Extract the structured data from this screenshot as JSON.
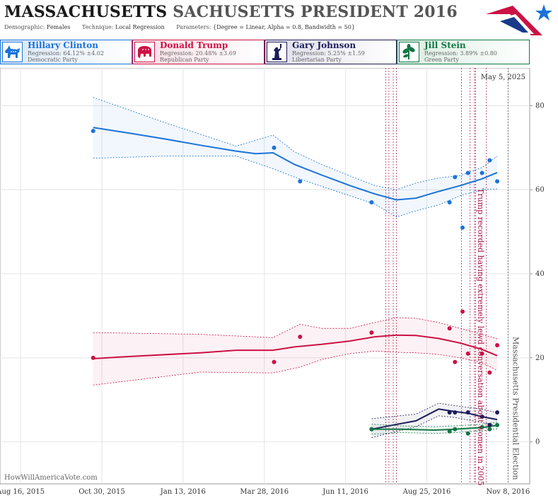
{
  "title_bold": "MASSACHUSETTS",
  "title_rest": "SACHUSETTS PRESIDENT 2016",
  "params": {
    "demographic_key": "Demographic:",
    "demographic": "Females",
    "technique_key": "Technique:",
    "technique": "Local Regression",
    "parameters_key": "Parameters:",
    "parameters": "{Degree = Linear, Alpha = 0.8, Bandwidth = 50}"
  },
  "candidates": [
    {
      "name": "Hillary Clinton",
      "regression": "Regression: 64.12% ±4.02",
      "party": "Democratic Party",
      "color": "#1a73d8",
      "icon": "donkey-icon"
    },
    {
      "name": "Donald Trump",
      "regression": "Regression: 20.48% ±3.69",
      "party": "Republican Party",
      "color": "#cc1144",
      "icon": "elephant-icon"
    },
    {
      "name": "Gary Johnson",
      "regression": "Regression: 5.25% ±1.59",
      "party": "Libertarian Party",
      "color": "#1c1c5a",
      "icon": "liberty-statue-icon"
    },
    {
      "name": "Jill Stein",
      "regression": "Regression: 3.89% ±0.80",
      "party": "Green Party",
      "color": "#117744",
      "icon": "plant-icon"
    }
  ],
  "watermark": "HowWillAmericaVote.com",
  "chart_data": {
    "type": "scatter",
    "date_label": "May 5, 2025",
    "x_ticks": [
      "2015-08-16",
      "2015-10-30",
      "2016-01-13",
      "2016-03-28",
      "2016-06-11",
      "2016-08-25",
      "2016-11-08"
    ],
    "x_tick_labels": [
      "Aug 16, 2015",
      "Oct 30, 2015",
      "Jan 13, 2016",
      "Mar 28, 2016",
      "Jun 11, 2016",
      "Aug 25, 2016",
      "Nov 8, 2016"
    ],
    "x_range": [
      "2015-07-28",
      "2016-11-28"
    ],
    "y_ticks": [
      0,
      20,
      40,
      60,
      80
    ],
    "y_range": [
      -10,
      89
    ],
    "grid": true,
    "events": [
      {
        "label": "Trump recorded having extremely lewd conversation about women in 2005",
        "date": "2016-10-08",
        "color": "#aa1144"
      },
      {
        "label": "Massachusetts Presidential Election",
        "date": "2016-11-08",
        "color": "#555555"
      }
    ],
    "extra_event_dates": [
      "2016-07-18",
      "2016-07-21",
      "2016-07-25",
      "2016-07-28",
      "2016-09-26",
      "2016-10-04",
      "2016-10-09",
      "2016-10-19"
    ],
    "series": [
      {
        "name": "Hillary Clinton",
        "color": "#1a73d8",
        "points": [
          [
            "2015-10-22",
            74
          ],
          [
            "2016-04-06",
            70
          ],
          [
            "2016-04-30",
            62
          ],
          [
            "2016-07-05",
            57
          ],
          [
            "2016-09-15",
            57
          ],
          [
            "2016-09-20",
            63
          ],
          [
            "2016-09-27",
            51
          ],
          [
            "2016-10-02",
            64
          ],
          [
            "2016-10-15",
            64
          ],
          [
            "2016-10-22",
            67
          ],
          [
            "2016-10-29",
            62
          ]
        ],
        "trend": [
          [
            "2015-10-22",
            74.8
          ],
          [
            "2015-11-24",
            73.5
          ],
          [
            "2015-12-27",
            72.1
          ],
          [
            "2016-01-29",
            70.6
          ],
          [
            "2016-03-02",
            69.2
          ],
          [
            "2016-03-20",
            68.6
          ],
          [
            "2016-04-05",
            68.8
          ],
          [
            "2016-04-25",
            66.0
          ],
          [
            "2016-05-20",
            63.5
          ],
          [
            "2016-06-15",
            61.0
          ],
          [
            "2016-07-08",
            59.0
          ],
          [
            "2016-07-28",
            57.6
          ],
          [
            "2016-08-15",
            58.0
          ],
          [
            "2016-09-05",
            59.6
          ],
          [
            "2016-09-25",
            61.0
          ],
          [
            "2016-10-15",
            62.6
          ],
          [
            "2016-10-29",
            64.1
          ]
        ],
        "upper": [
          [
            "2015-10-22",
            82.0
          ],
          [
            "2015-12-27",
            76.0
          ],
          [
            "2016-03-02",
            70.4
          ],
          [
            "2016-04-05",
            73.0
          ],
          [
            "2016-04-25",
            69.0
          ],
          [
            "2016-05-20",
            66.0
          ],
          [
            "2016-06-15",
            63.3
          ],
          [
            "2016-07-08",
            61.0
          ],
          [
            "2016-07-28",
            60.0
          ],
          [
            "2016-08-15",
            61.6
          ],
          [
            "2016-09-05",
            62.8
          ],
          [
            "2016-09-25",
            63.4
          ],
          [
            "2016-10-15",
            65.3
          ],
          [
            "2016-10-29",
            68.0
          ]
        ],
        "lower": [
          [
            "2015-10-22",
            67.5
          ],
          [
            "2015-12-27",
            68.0
          ],
          [
            "2016-03-02",
            68.0
          ],
          [
            "2016-04-05",
            65.0
          ],
          [
            "2016-04-25",
            63.0
          ],
          [
            "2016-05-20",
            60.8
          ],
          [
            "2016-06-15",
            58.6
          ],
          [
            "2016-07-08",
            56.6
          ],
          [
            "2016-07-28",
            53.5
          ],
          [
            "2016-08-15",
            55.0
          ],
          [
            "2016-09-05",
            56.4
          ],
          [
            "2016-09-25",
            58.6
          ],
          [
            "2016-10-15",
            60.0
          ],
          [
            "2016-10-29",
            60.2
          ]
        ]
      },
      {
        "name": "Donald Trump",
        "color": "#cc1144",
        "points": [
          [
            "2015-10-22",
            20
          ],
          [
            "2016-04-06",
            19
          ],
          [
            "2016-04-30",
            25
          ],
          [
            "2016-07-05",
            26
          ],
          [
            "2016-09-15",
            27
          ],
          [
            "2016-09-20",
            19
          ],
          [
            "2016-09-27",
            31
          ],
          [
            "2016-10-02",
            21
          ],
          [
            "2016-10-15",
            21
          ],
          [
            "2016-10-22",
            16.5
          ],
          [
            "2016-10-29",
            23
          ]
        ],
        "trend": [
          [
            "2015-10-22",
            19.8
          ],
          [
            "2015-11-24",
            20.3
          ],
          [
            "2016-01-29",
            21.2
          ],
          [
            "2016-03-02",
            21.8
          ],
          [
            "2016-04-05",
            21.8
          ],
          [
            "2016-04-25",
            22.6
          ],
          [
            "2016-05-20",
            23.2
          ],
          [
            "2016-06-15",
            24.0
          ],
          [
            "2016-07-08",
            25.0
          ],
          [
            "2016-07-28",
            25.4
          ],
          [
            "2016-08-15",
            25.3
          ],
          [
            "2016-09-05",
            24.6
          ],
          [
            "2016-09-25",
            23.5
          ],
          [
            "2016-10-15",
            22.0
          ],
          [
            "2016-10-29",
            20.5
          ]
        ],
        "upper": [
          [
            "2015-10-22",
            26.0
          ],
          [
            "2016-01-29",
            25.6
          ],
          [
            "2016-04-05",
            24.8
          ],
          [
            "2016-04-30",
            28.0
          ],
          [
            "2016-05-20",
            27.0
          ],
          [
            "2016-06-15",
            27.0
          ],
          [
            "2016-07-08",
            28.4
          ],
          [
            "2016-07-28",
            29.6
          ],
          [
            "2016-08-15",
            29.4
          ],
          [
            "2016-09-05",
            28.4
          ],
          [
            "2016-09-25",
            27.0
          ],
          [
            "2016-10-15",
            25.6
          ],
          [
            "2016-10-29",
            24.5
          ]
        ],
        "lower": [
          [
            "2015-10-22",
            13.5
          ],
          [
            "2016-01-29",
            16.6
          ],
          [
            "2016-04-05",
            16.4
          ],
          [
            "2016-04-30",
            17.8
          ],
          [
            "2016-05-20",
            19.6
          ],
          [
            "2016-06-15",
            21.0
          ],
          [
            "2016-07-08",
            21.6
          ],
          [
            "2016-07-28",
            21.3
          ],
          [
            "2016-08-15",
            21.2
          ],
          [
            "2016-09-05",
            20.8
          ],
          [
            "2016-09-25",
            20.0
          ],
          [
            "2016-10-15",
            18.8
          ],
          [
            "2016-10-29",
            17.0
          ]
        ]
      },
      {
        "name": "Gary Johnson",
        "color": "#1c1c5a",
        "points": [
          [
            "2016-07-05",
            3
          ],
          [
            "2016-09-15",
            7
          ],
          [
            "2016-09-20",
            7
          ],
          [
            "2016-10-02",
            7
          ],
          [
            "2016-10-15",
            6
          ],
          [
            "2016-10-22",
            4
          ],
          [
            "2016-10-29",
            7
          ]
        ],
        "trend": [
          [
            "2016-07-05",
            3.0
          ],
          [
            "2016-07-25",
            4.0
          ],
          [
            "2016-08-15",
            5.0
          ],
          [
            "2016-09-05",
            7.8
          ],
          [
            "2016-09-20",
            7.2
          ],
          [
            "2016-10-02",
            6.8
          ],
          [
            "2016-10-15",
            6.0
          ],
          [
            "2016-10-29",
            5.3
          ]
        ],
        "upper": [
          [
            "2016-07-05",
            5.5
          ],
          [
            "2016-08-15",
            6.6
          ],
          [
            "2016-09-05",
            9.2
          ],
          [
            "2016-09-20",
            8.6
          ],
          [
            "2016-10-15",
            7.8
          ],
          [
            "2016-10-29",
            6.9
          ]
        ],
        "lower": [
          [
            "2016-07-05",
            1.0
          ],
          [
            "2016-08-15",
            3.6
          ],
          [
            "2016-09-05",
            6.2
          ],
          [
            "2016-09-20",
            5.8
          ],
          [
            "2016-10-15",
            4.6
          ],
          [
            "2016-10-29",
            3.8
          ]
        ]
      },
      {
        "name": "Jill Stein",
        "color": "#117744",
        "points": [
          [
            "2016-07-05",
            3
          ],
          [
            "2016-09-15",
            2.5
          ],
          [
            "2016-09-20",
            3
          ],
          [
            "2016-10-02",
            2
          ],
          [
            "2016-10-15",
            3.5
          ],
          [
            "2016-10-22",
            3
          ],
          [
            "2016-10-29",
            4
          ]
        ],
        "trend": [
          [
            "2016-07-05",
            3.0
          ],
          [
            "2016-08-01",
            3.0
          ],
          [
            "2016-09-01",
            2.8
          ],
          [
            "2016-09-20",
            3.0
          ],
          [
            "2016-10-15",
            3.4
          ],
          [
            "2016-10-29",
            3.9
          ]
        ],
        "upper": [
          [
            "2016-07-05",
            4.2
          ],
          [
            "2016-08-01",
            3.8
          ],
          [
            "2016-09-01",
            3.6
          ],
          [
            "2016-09-20",
            3.8
          ],
          [
            "2016-10-15",
            4.2
          ],
          [
            "2016-10-29",
            4.7
          ]
        ],
        "lower": [
          [
            "2016-07-05",
            1.8
          ],
          [
            "2016-08-01",
            2.2
          ],
          [
            "2016-09-01",
            2.0
          ],
          [
            "2016-09-20",
            2.2
          ],
          [
            "2016-10-15",
            2.6
          ],
          [
            "2016-10-29",
            3.1
          ]
        ]
      }
    ]
  }
}
